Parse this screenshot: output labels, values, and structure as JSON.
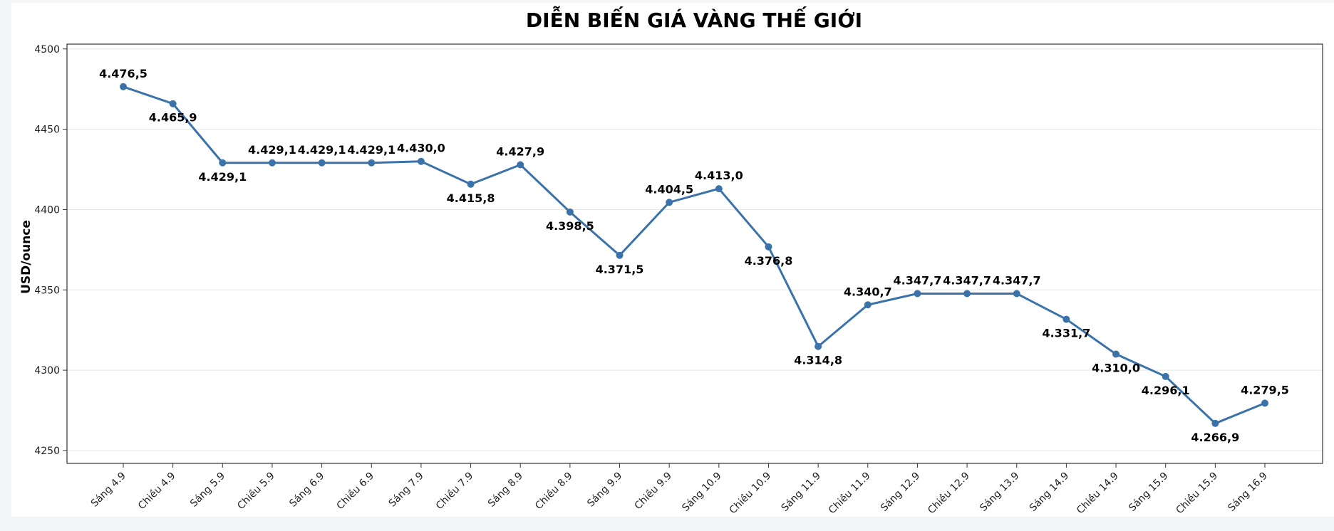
{
  "chart_data": {
    "type": "line",
    "title": "DIỄN BIẾN GIÁ VÀNG THẾ GIỚI",
    "xlabel": "",
    "ylabel": "USD/ounce",
    "ylim": [
      4242,
      4503
    ],
    "yticks": [
      4250,
      4300,
      4350,
      4400,
      4450,
      4500
    ],
    "grid": "horizontal",
    "color": "#3a72a9",
    "categories": [
      "Sáng 4.9",
      "Chiều 4.9",
      "Sáng 5.9",
      "Chiều 5.9",
      "Sáng 6.9",
      "Chiều 6.9",
      "Sáng 7.9",
      "Chiều 7.9",
      "Sáng 8.9",
      "Chiều 8.9",
      "Sáng 9.9",
      "Chiều 9.9",
      "Sáng 10.9",
      "Chiều 10.9",
      "Sáng 11.9",
      "Chiều 11.9",
      "Sáng 12.9",
      "Chiều 12.9",
      "Sáng 13.9",
      "Sáng 14.9",
      "Chiều 14.9",
      "Sáng 15.9",
      "Chiều 15.9",
      "Sáng 16.9"
    ],
    "values": [
      4476.5,
      4465.9,
      4429.1,
      4429.1,
      4429.1,
      4429.1,
      4430.0,
      4415.8,
      4427.9,
      4398.5,
      4371.5,
      4404.5,
      4413.0,
      4376.8,
      4314.8,
      4340.7,
      4347.7,
      4347.7,
      4347.7,
      4331.7,
      4310.0,
      4296.1,
      4266.9,
      4279.5
    ],
    "labels": [
      "4.476,5",
      "4.465,9",
      "4.429,1",
      "4.429,1",
      "4.429,1",
      "4.429,1",
      "4.430,0",
      "4.415,8",
      "4.427,9",
      "4.398,5",
      "4.371,5",
      "4.404,5",
      "4.413,0",
      "4.376,8",
      "4.314,8",
      "4.340,7",
      "4.347,7",
      "4.347,7",
      "4.347,7",
      "4.331,7",
      "4.310,0",
      "4.296,1",
      "4.266,9",
      "4.279,5"
    ]
  }
}
